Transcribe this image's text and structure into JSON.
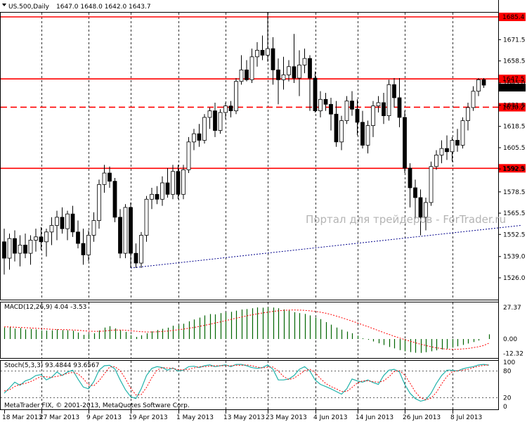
{
  "symbol_header": {
    "symbol": "US.500,Daily",
    "ohlc": "1647.0 1648.0 1642.0 1643.7"
  },
  "watermark": "Портал для трейдеров - ForTrader.ru",
  "copyright": "MetaTrader FIX, © 2001-2013, MetaQuotes Software Corp.",
  "colors": {
    "frame": "#000000",
    "level": "#ff0000",
    "trend": "#00008b",
    "hist": "#006400",
    "signal": "#ff0000",
    "stoch_main": "#20b2aa",
    "candle_bull": "#ffffff",
    "candle_bear": "#000000"
  },
  "chart_data": [
    {
      "type": "candlestick",
      "title": "US.500,Daily",
      "y_ticks": [
        "1671.5",
        "1658.5",
        "1645.0",
        "1631.5",
        "1618.5",
        "1605.5",
        "1592.5",
        "1578.5",
        "1565.5",
        "1552.5",
        "1539.0",
        "1526.0"
      ],
      "ylim": [
        1522,
        1690
      ],
      "x_labels": [
        "18 Mar 2013",
        "27 Mar 2013",
        "9 Apr 2013",
        "19 Apr 2013",
        "1 May 2013",
        "13 May 2013",
        "23 May 2013",
        "4 Jun 2013",
        "14 Jun 2013",
        "26 Jun 2013",
        "8 Jul 2013"
      ],
      "x_label_bars": [
        0,
        7,
        16,
        24,
        33,
        42,
        50,
        59,
        67,
        76,
        85
      ],
      "levels": [
        {
          "label": "1685.4",
          "value": 1685.4,
          "style": "solid"
        },
        {
          "label": "1647.5",
          "value": 1647.5,
          "style": "solid"
        },
        {
          "label": "1630.2",
          "value": 1630.2,
          "style": "dashed"
        },
        {
          "label": "1592.9",
          "value": 1592.9,
          "style": "solid"
        }
      ],
      "last_price_label": "1643.7",
      "last_price": 1643.7,
      "trendline": {
        "from": {
          "bar": 24,
          "price": 1532
        },
        "to": {
          "bar": 98,
          "price": 1558
        }
      },
      "candles": [
        {
          "o": 1548,
          "h": 1556,
          "l": 1528,
          "c": 1538
        },
        {
          "o": 1538,
          "h": 1553,
          "l": 1531,
          "c": 1550
        },
        {
          "o": 1550,
          "h": 1555,
          "l": 1536,
          "c": 1541
        },
        {
          "o": 1541,
          "h": 1552,
          "l": 1533,
          "c": 1546
        },
        {
          "o": 1546,
          "h": 1553,
          "l": 1538,
          "c": 1541
        },
        {
          "o": 1541,
          "h": 1552,
          "l": 1534,
          "c": 1549
        },
        {
          "o": 1549,
          "h": 1556,
          "l": 1542,
          "c": 1551
        },
        {
          "o": 1551,
          "h": 1557,
          "l": 1543,
          "c": 1548
        },
        {
          "o": 1548,
          "h": 1556,
          "l": 1539,
          "c": 1554
        },
        {
          "o": 1554,
          "h": 1563,
          "l": 1546,
          "c": 1558
        },
        {
          "o": 1558,
          "h": 1567,
          "l": 1549,
          "c": 1563
        },
        {
          "o": 1563,
          "h": 1569,
          "l": 1553,
          "c": 1556
        },
        {
          "o": 1556,
          "h": 1567,
          "l": 1549,
          "c": 1565
        },
        {
          "o": 1565,
          "h": 1570,
          "l": 1551,
          "c": 1554
        },
        {
          "o": 1554,
          "h": 1561,
          "l": 1544,
          "c": 1547
        },
        {
          "o": 1547,
          "h": 1556,
          "l": 1534,
          "c": 1540
        },
        {
          "o": 1540,
          "h": 1555,
          "l": 1536,
          "c": 1552
        },
        {
          "o": 1552,
          "h": 1566,
          "l": 1548,
          "c": 1561
        },
        {
          "o": 1561,
          "h": 1586,
          "l": 1556,
          "c": 1583
        },
        {
          "o": 1583,
          "h": 1595,
          "l": 1578,
          "c": 1590
        },
        {
          "o": 1590,
          "h": 1594,
          "l": 1581,
          "c": 1585
        },
        {
          "o": 1585,
          "h": 1587,
          "l": 1560,
          "c": 1563
        },
        {
          "o": 1563,
          "h": 1568,
          "l": 1538,
          "c": 1541
        },
        {
          "o": 1541,
          "h": 1571,
          "l": 1538,
          "c": 1569
        },
        {
          "o": 1569,
          "h": 1572,
          "l": 1532,
          "c": 1541
        },
        {
          "o": 1541,
          "h": 1547,
          "l": 1532,
          "c": 1535
        },
        {
          "o": 1535,
          "h": 1554,
          "l": 1532,
          "c": 1552
        },
        {
          "o": 1552,
          "h": 1576,
          "l": 1548,
          "c": 1574
        },
        {
          "o": 1574,
          "h": 1581,
          "l": 1568,
          "c": 1577
        },
        {
          "o": 1577,
          "h": 1582,
          "l": 1571,
          "c": 1574
        },
        {
          "o": 1574,
          "h": 1588,
          "l": 1570,
          "c": 1584
        },
        {
          "o": 1584,
          "h": 1593,
          "l": 1575,
          "c": 1577
        },
        {
          "o": 1577,
          "h": 1595,
          "l": 1574,
          "c": 1591
        },
        {
          "o": 1591,
          "h": 1595,
          "l": 1574,
          "c": 1577
        },
        {
          "o": 1577,
          "h": 1595,
          "l": 1574,
          "c": 1592
        },
        {
          "o": 1592,
          "h": 1612,
          "l": 1590,
          "c": 1609
        },
        {
          "o": 1609,
          "h": 1617,
          "l": 1604,
          "c": 1614
        },
        {
          "o": 1614,
          "h": 1620,
          "l": 1606,
          "c": 1610
        },
        {
          "o": 1610,
          "h": 1626,
          "l": 1608,
          "c": 1624
        },
        {
          "o": 1624,
          "h": 1630,
          "l": 1617,
          "c": 1628
        },
        {
          "o": 1628,
          "h": 1633,
          "l": 1612,
          "c": 1616
        },
        {
          "o": 1616,
          "h": 1629,
          "l": 1614,
          "c": 1627
        },
        {
          "o": 1627,
          "h": 1633,
          "l": 1623,
          "c": 1631
        },
        {
          "o": 1631,
          "h": 1634,
          "l": 1624,
          "c": 1628
        },
        {
          "o": 1628,
          "h": 1648,
          "l": 1626,
          "c": 1646
        },
        {
          "o": 1646,
          "h": 1662,
          "l": 1644,
          "c": 1653
        },
        {
          "o": 1653,
          "h": 1659,
          "l": 1646,
          "c": 1647
        },
        {
          "o": 1647,
          "h": 1666,
          "l": 1645,
          "c": 1661
        },
        {
          "o": 1661,
          "h": 1670,
          "l": 1655,
          "c": 1665
        },
        {
          "o": 1665,
          "h": 1674,
          "l": 1659,
          "c": 1662
        },
        {
          "o": 1662,
          "h": 1688,
          "l": 1658,
          "c": 1666
        },
        {
          "o": 1666,
          "h": 1673,
          "l": 1644,
          "c": 1653
        },
        {
          "o": 1653,
          "h": 1660,
          "l": 1632,
          "c": 1647
        },
        {
          "o": 1647,
          "h": 1661,
          "l": 1641,
          "c": 1650
        },
        {
          "o": 1650,
          "h": 1659,
          "l": 1646,
          "c": 1655
        },
        {
          "o": 1655,
          "h": 1675,
          "l": 1645,
          "c": 1648
        },
        {
          "o": 1648,
          "h": 1665,
          "l": 1637,
          "c": 1656
        },
        {
          "o": 1656,
          "h": 1666,
          "l": 1651,
          "c": 1660
        },
        {
          "o": 1660,
          "h": 1662,
          "l": 1628,
          "c": 1648
        },
        {
          "o": 1648,
          "h": 1652,
          "l": 1627,
          "c": 1628
        },
        {
          "o": 1628,
          "h": 1640,
          "l": 1624,
          "c": 1635
        },
        {
          "o": 1635,
          "h": 1639,
          "l": 1628,
          "c": 1632
        },
        {
          "o": 1632,
          "h": 1636,
          "l": 1616,
          "c": 1626
        },
        {
          "o": 1626,
          "h": 1634,
          "l": 1606,
          "c": 1609
        },
        {
          "o": 1609,
          "h": 1625,
          "l": 1604,
          "c": 1622
        },
        {
          "o": 1622,
          "h": 1637,
          "l": 1620,
          "c": 1634
        },
        {
          "o": 1634,
          "h": 1640,
          "l": 1625,
          "c": 1629
        },
        {
          "o": 1629,
          "h": 1635,
          "l": 1613,
          "c": 1621
        },
        {
          "o": 1621,
          "h": 1628,
          "l": 1605,
          "c": 1607
        },
        {
          "o": 1607,
          "h": 1622,
          "l": 1602,
          "c": 1619
        },
        {
          "o": 1619,
          "h": 1634,
          "l": 1612,
          "c": 1631
        },
        {
          "o": 1631,
          "h": 1637,
          "l": 1627,
          "c": 1633
        },
        {
          "o": 1633,
          "h": 1639,
          "l": 1620,
          "c": 1625
        },
        {
          "o": 1625,
          "h": 1647,
          "l": 1622,
          "c": 1644
        },
        {
          "o": 1644,
          "h": 1648,
          "l": 1630,
          "c": 1636
        },
        {
          "o": 1636,
          "h": 1648,
          "l": 1618,
          "c": 1624
        },
        {
          "o": 1624,
          "h": 1628,
          "l": 1590,
          "c": 1593
        },
        {
          "o": 1593,
          "h": 1596,
          "l": 1569,
          "c": 1581
        },
        {
          "o": 1581,
          "h": 1586,
          "l": 1562,
          "c": 1575
        },
        {
          "o": 1575,
          "h": 1580,
          "l": 1552,
          "c": 1563
        },
        {
          "o": 1563,
          "h": 1575,
          "l": 1555,
          "c": 1572
        },
        {
          "o": 1572,
          "h": 1597,
          "l": 1570,
          "c": 1594
        },
        {
          "o": 1594,
          "h": 1604,
          "l": 1592,
          "c": 1601
        },
        {
          "o": 1601,
          "h": 1610,
          "l": 1596,
          "c": 1605
        },
        {
          "o": 1605,
          "h": 1613,
          "l": 1598,
          "c": 1603
        },
        {
          "o": 1603,
          "h": 1612,
          "l": 1597,
          "c": 1610
        },
        {
          "o": 1610,
          "h": 1617,
          "l": 1603,
          "c": 1607
        },
        {
          "o": 1607,
          "h": 1624,
          "l": 1605,
          "c": 1622
        },
        {
          "o": 1622,
          "h": 1633,
          "l": 1616,
          "c": 1630
        },
        {
          "o": 1630,
          "h": 1643,
          "l": 1628,
          "c": 1640
        },
        {
          "o": 1640,
          "h": 1648,
          "l": 1637,
          "c": 1647
        },
        {
          "o": 1647,
          "h": 1648,
          "l": 1642,
          "c": 1643.7
        }
      ]
    },
    {
      "type": "bar",
      "title": "MACD(12,26,9) 4.04 -3.53",
      "y_ticks": [
        "27.37",
        "0.00",
        "-12.32"
      ],
      "ylim": [
        -16,
        33
      ],
      "series": [
        {
          "values": [
            10.0,
            10.3,
            9.0,
            9.5,
            8.3,
            8.7,
            8.3,
            7.4,
            7.3,
            7.5,
            8.3,
            7.7,
            7.6,
            7.2,
            5.6,
            3.6,
            4.2,
            5.0,
            7.4,
            9.9,
            11.1,
            9.2,
            7.7,
            6.2,
            3.3,
            1.8,
            3.2,
            5.0,
            6.6,
            7.8,
            8.8,
            9.8,
            11.5,
            12.0,
            13.2,
            15.3,
            16.9,
            18.5,
            20.4,
            21.6,
            21.3,
            22.4,
            23.2,
            23.5,
            24.5,
            25.5,
            25.9,
            26.6,
            27.3,
            27.1,
            27.3,
            27.2,
            26.6,
            25.6,
            24.6,
            23.2,
            22.4,
            21.7,
            20.4,
            18.6,
            17.2,
            14.6,
            12.4,
            9.9,
            8.1,
            6.4,
            5.0,
            2.9,
            0.6,
            -0.7,
            -2.1,
            -3.7,
            -5.2,
            -6.9,
            -8.1,
            -9.6,
            -10.6,
            -11.3,
            -11.9,
            -12.0,
            -11.4,
            -10.6,
            -9.8,
            -9.1,
            -8.4,
            -7.5,
            -6.3,
            -5.1,
            -3.9,
            -2.6,
            -1.3,
            0.0,
            4.04
          ]
        }
      ],
      "signal": [
        10.5,
        10.4,
        10.2,
        10.0,
        9.8,
        9.5,
        9.3,
        9.0,
        8.7,
        8.4,
        8.2,
        8.1,
        8.0,
        7.8,
        7.6,
        7.2,
        6.8,
        6.6,
        6.6,
        6.9,
        7.4,
        7.8,
        7.8,
        7.6,
        7.2,
        6.7,
        6.3,
        6.1,
        6.1,
        6.2,
        6.5,
        6.9,
        7.4,
        8.0,
        8.6,
        9.3,
        10.0,
        10.9,
        11.8,
        12.8,
        13.8,
        14.8,
        15.9,
        16.9,
        18.0,
        19.0,
        20.0,
        20.9,
        21.7,
        22.5,
        23.2,
        23.9,
        24.4,
        24.8,
        25.0,
        25.1,
        25.0,
        24.8,
        24.4,
        23.9,
        23.2,
        22.3,
        21.2,
        19.9,
        18.4,
        17.0,
        15.5,
        13.9,
        12.3,
        10.7,
        9.0,
        7.3,
        5.6,
        4.0,
        2.4,
        0.9,
        -0.5,
        -1.9,
        -3.2,
        -4.5,
        -5.6,
        -6.7,
        -7.6,
        -8.3,
        -8.8,
        -9.0,
        -8.9,
        -8.6,
        -8.2,
        -7.5,
        -6.7,
        -5.6,
        -3.53
      ]
    },
    {
      "type": "line",
      "title": "Stoch(5,3,3) 93.4844 93.6567",
      "y_ticks": [
        "100",
        "80",
        "20",
        "0"
      ],
      "ylim": [
        0,
        100
      ],
      "series": [
        {
          "values": [
            30,
            42,
            55,
            48,
            58,
            62,
            70,
            72,
            60,
            66,
            78,
            70,
            78,
            82,
            62,
            44,
            40,
            56,
            82,
            92,
            93,
            85,
            60,
            38,
            22,
            18,
            40,
            70,
            86,
            90,
            88,
            82,
            87,
            80,
            82,
            90,
            91,
            88,
            92,
            94,
            90,
            92,
            94,
            90,
            95,
            95,
            92,
            88,
            86,
            88,
            94,
            84,
            60,
            60,
            62,
            70,
            84,
            90,
            80,
            60,
            50,
            45,
            40,
            34,
            28,
            40,
            62,
            58,
            55,
            60,
            54,
            50,
            70,
            82,
            84,
            78,
            50,
            30,
            18,
            12,
            15,
            30,
            52,
            70,
            82,
            82,
            80,
            85,
            88,
            90,
            94,
            95,
            93.4844
          ]
        },
        {
          "values": [
            35,
            38,
            45,
            50,
            52,
            56,
            62,
            68,
            67,
            66,
            68,
            71,
            75,
            77,
            74,
            63,
            49,
            47,
            58,
            74,
            89,
            90,
            81,
            63,
            41,
            26,
            27,
            43,
            65,
            82,
            88,
            87,
            86,
            83,
            83,
            84,
            87,
            90,
            90,
            91,
            92,
            92,
            92,
            92,
            93,
            93,
            94,
            92,
            89,
            87,
            89,
            89,
            80,
            68,
            61,
            64,
            72,
            81,
            84,
            77,
            63,
            52,
            45,
            40,
            34,
            34,
            43,
            53,
            58,
            58,
            56,
            55,
            58,
            67,
            79,
            81,
            71,
            53,
            33,
            20,
            15,
            19,
            32,
            51,
            68,
            78,
            81,
            82,
            84,
            88,
            91,
            93,
            93.6567
          ]
        }
      ]
    }
  ]
}
